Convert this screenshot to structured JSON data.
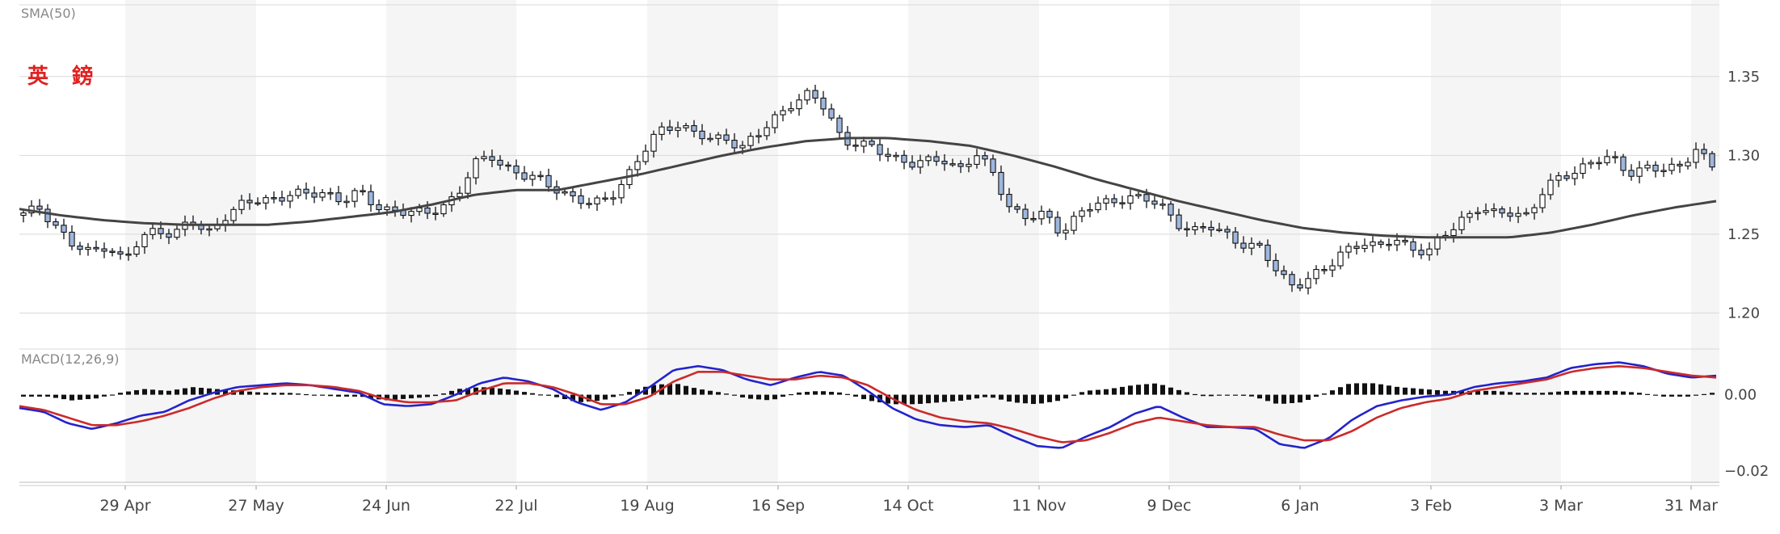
{
  "colors": {
    "candle_fill": "#9fb7dd",
    "candle_stroke": "#111111",
    "sma_line": "#444444",
    "macd_line": "#2323cc",
    "signal_line": "#cc2a2a",
    "histogram": "#111111",
    "title_red": "#e02020",
    "band_shade": "#f5f5f5",
    "grid": "#d9d9d9",
    "axis_text": "#444444",
    "label_text": "#888888"
  },
  "chart_data": [
    {
      "type": "candlestick",
      "title": "英 鎊",
      "indicator_label": "SMA(50)",
      "ylim": [
        1.19,
        1.395
      ],
      "y_ticks": [
        "1.35",
        "1.30",
        "1.25",
        "1.20"
      ],
      "x_ticks": [
        "29 Apr",
        "27 May",
        "24 Jun",
        "22 Jul",
        "19 Aug",
        "16 Sep",
        "14 Oct",
        "11 Nov",
        "9 Dec",
        "6 Jan",
        "3 Feb",
        "3 Mar",
        "31 Mar"
      ],
      "grid": true,
      "close_anchors": [
        1.262,
        1.267,
        1.255,
        1.242,
        1.238,
        1.244,
        1.233,
        1.246,
        1.254,
        1.25,
        1.258,
        1.25,
        1.262,
        1.268,
        1.271,
        1.273,
        1.276,
        1.274,
        1.277,
        1.272,
        1.276,
        1.268,
        1.266,
        1.264,
        1.262,
        1.268,
        1.276,
        1.294,
        1.3,
        1.292,
        1.286,
        1.284,
        1.279,
        1.272,
        1.268,
        1.274,
        1.285,
        1.3,
        1.316,
        1.321,
        1.314,
        1.31,
        1.312,
        1.305,
        1.313,
        1.325,
        1.334,
        1.338,
        1.33,
        1.31,
        1.307,
        1.303,
        1.3,
        1.295,
        1.295,
        1.298,
        1.292,
        1.3,
        1.288,
        1.268,
        1.26,
        1.262,
        1.252,
        1.262,
        1.268,
        1.27,
        1.275,
        1.272,
        1.268,
        1.258,
        1.252,
        1.254,
        1.25,
        1.244,
        1.24,
        1.226,
        1.218,
        1.222,
        1.228,
        1.241,
        1.245,
        1.24,
        1.248,
        1.242,
        1.237,
        1.25,
        1.26,
        1.266,
        1.262,
        1.265,
        1.262,
        1.278,
        1.287,
        1.292,
        1.296,
        1.298,
        1.29,
        1.292,
        1.29,
        1.293,
        1.305,
        1.292
      ],
      "sma_anchors": [
        1.266,
        1.262,
        1.259,
        1.257,
        1.256,
        1.256,
        1.256,
        1.258,
        1.261,
        1.264,
        1.269,
        1.275,
        1.278,
        1.278,
        1.283,
        1.288,
        1.294,
        1.3,
        1.305,
        1.309,
        1.311,
        1.311,
        1.309,
        1.306,
        1.3,
        1.293,
        1.285,
        1.278,
        1.271,
        1.265,
        1.259,
        1.254,
        1.251,
        1.249,
        1.248,
        1.248,
        1.248,
        1.251,
        1.256,
        1.262,
        1.267,
        1.271
      ],
      "legend": false
    },
    {
      "type": "macd",
      "indicator_label": "MACD(12,26,9)",
      "ylim": [
        -0.023,
        0.012
      ],
      "y_ticks": [
        "0.00",
        "-0.02"
      ],
      "macd_anchors": [
        -0.0035,
        -0.0045,
        -0.0075,
        -0.009,
        -0.0075,
        -0.0055,
        -0.0045,
        -0.0015,
        0.0005,
        0.002,
        0.0025,
        0.003,
        0.0025,
        0.0015,
        0.0005,
        -0.0025,
        -0.003,
        -0.0025,
        0.0,
        0.003,
        0.0045,
        0.0035,
        0.0015,
        -0.002,
        -0.004,
        -0.002,
        0.002,
        0.0065,
        0.0075,
        0.0065,
        0.004,
        0.0025,
        0.0045,
        0.006,
        0.005,
        0.001,
        -0.0035,
        -0.0065,
        -0.008,
        -0.0085,
        -0.008,
        -0.011,
        -0.0135,
        -0.014,
        -0.011,
        -0.0085,
        -0.005,
        -0.003,
        -0.006,
        -0.0085,
        -0.0085,
        -0.009,
        -0.013,
        -0.014,
        -0.0115,
        -0.0065,
        -0.003,
        -0.0015,
        -0.0005,
        0.0,
        0.002,
        0.003,
        0.0035,
        0.0045,
        0.007,
        0.008,
        0.0085,
        0.0075,
        0.0055,
        0.0045,
        0.005
      ],
      "signal_anchors": [
        -0.003,
        -0.004,
        -0.006,
        -0.008,
        -0.008,
        -0.007,
        -0.0055,
        -0.0035,
        -0.001,
        0.001,
        0.002,
        0.0025,
        0.0025,
        0.002,
        0.001,
        -0.001,
        -0.002,
        -0.002,
        -0.0015,
        0.001,
        0.003,
        0.003,
        0.002,
        0.0,
        -0.0025,
        -0.0025,
        -0.0005,
        0.0035,
        0.006,
        0.006,
        0.005,
        0.004,
        0.004,
        0.005,
        0.0045,
        0.0025,
        -0.001,
        -0.004,
        -0.006,
        -0.007,
        -0.0075,
        -0.009,
        -0.011,
        -0.0125,
        -0.012,
        -0.01,
        -0.0075,
        -0.006,
        -0.007,
        -0.008,
        -0.0085,
        -0.0085,
        -0.0105,
        -0.012,
        -0.012,
        -0.0095,
        -0.006,
        -0.0035,
        -0.002,
        -0.001,
        0.001,
        0.002,
        0.003,
        0.004,
        0.006,
        0.007,
        0.0075,
        0.007,
        0.006,
        0.005,
        0.0045
      ],
      "legend": false
    }
  ]
}
